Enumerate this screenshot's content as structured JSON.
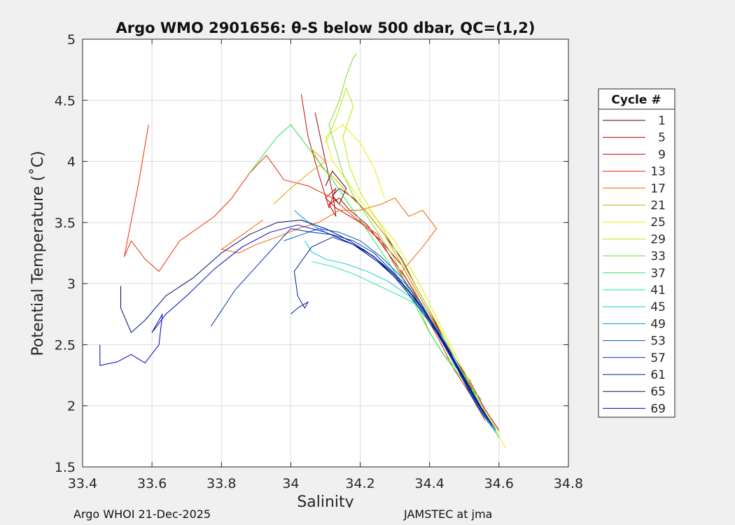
{
  "chart_data": {
    "type": "line",
    "title": "Argo WMO 2901656: θ-S below 500 dbar,  QC=(1,2)",
    "xlabel": "Salinity",
    "ylabel": "Potential Temperature (˚C)",
    "xlim": [
      33.4,
      34.8
    ],
    "ylim": [
      1.5,
      5
    ],
    "xticks": [
      "33.4",
      "33.6",
      "33.8",
      "34",
      "34.2",
      "34.4",
      "34.6",
      "34.8"
    ],
    "yticks": [
      "1.5",
      "2",
      "2.5",
      "3",
      "3.5",
      "4",
      "4.5",
      "5"
    ],
    "grid": true,
    "legend": {
      "title": "Cycle #",
      "position": "right",
      "entries": [
        "1",
        "5",
        "9",
        "13",
        "17",
        "21",
        "25",
        "29",
        "33",
        "37",
        "41",
        "45",
        "49",
        "53",
        "57",
        "61",
        "65",
        "69"
      ],
      "colors": [
        "#4d0000",
        "#9e0000",
        "#d40000",
        "#ee2a00",
        "#f06000",
        "#e0a000",
        "#f0e800",
        "#b8e800",
        "#70e030",
        "#30e050",
        "#20e0b0",
        "#10c8e0",
        "#0090d0",
        "#0058c0",
        "#0030a8",
        "#001c8c",
        "#000e70",
        "#0000c0"
      ]
    },
    "series": [
      {
        "name": "1",
        "salinity": [
          34.58,
          34.55,
          34.52,
          34.48,
          34.44,
          34.4,
          34.36,
          34.32,
          34.27,
          34.22,
          34.18,
          34.14,
          34.12,
          34.14,
          34.16,
          34.12,
          34.1
        ],
        "theta": [
          1.84,
          2.0,
          2.15,
          2.35,
          2.55,
          2.78,
          2.98,
          3.2,
          3.4,
          3.58,
          3.7,
          3.78,
          3.72,
          3.65,
          3.78,
          3.92,
          3.8
        ]
      },
      {
        "name": "5",
        "salinity": [
          34.6,
          34.56,
          34.52,
          34.47,
          34.42,
          34.38,
          34.33,
          34.28,
          34.22,
          34.17,
          34.14,
          34.11,
          34.13,
          34.12,
          34.1,
          34.07
        ],
        "theta": [
          1.8,
          1.97,
          2.18,
          2.4,
          2.62,
          2.82,
          3.05,
          3.25,
          3.48,
          3.6,
          3.7,
          3.65,
          3.55,
          3.75,
          4.0,
          4.4
        ]
      },
      {
        "name": "9",
        "salinity": [
          34.57,
          34.53,
          34.48,
          34.44,
          34.38,
          34.32,
          34.26,
          34.2,
          34.13,
          34.1,
          34.13,
          34.11,
          34.08,
          34.05,
          34.03
        ],
        "theta": [
          1.9,
          2.1,
          2.32,
          2.55,
          2.85,
          3.15,
          3.35,
          3.5,
          3.62,
          3.7,
          3.78,
          3.62,
          3.9,
          4.2,
          4.55
        ]
      },
      {
        "name": "13",
        "salinity": [
          34.56,
          34.52,
          34.47,
          34.42,
          34.36,
          34.3,
          34.25,
          34.18,
          34.12,
          34.05,
          33.98,
          33.93,
          33.88,
          33.83,
          33.78,
          33.73,
          33.68,
          33.62,
          33.58,
          33.54,
          33.52,
          33.56,
          33.59
        ],
        "theta": [
          1.88,
          2.08,
          2.3,
          2.58,
          2.88,
          3.15,
          3.4,
          3.55,
          3.7,
          3.8,
          3.85,
          4.05,
          3.9,
          3.7,
          3.55,
          3.45,
          3.35,
          3.1,
          3.2,
          3.35,
          3.22,
          3.8,
          4.3
        ]
      },
      {
        "name": "17",
        "salinity": [
          34.58,
          34.54,
          34.5,
          34.45,
          34.4,
          34.36,
          34.32,
          34.38,
          34.42,
          34.38,
          34.34,
          34.3,
          34.26,
          34.2,
          34.14,
          34.08,
          34.02,
          33.96,
          33.9,
          33.85,
          33.8,
          33.86,
          33.92
        ],
        "theta": [
          1.85,
          2.02,
          2.2,
          2.45,
          2.7,
          2.92,
          3.1,
          3.3,
          3.45,
          3.6,
          3.55,
          3.7,
          3.65,
          3.6,
          3.6,
          3.5,
          3.45,
          3.38,
          3.32,
          3.25,
          3.28,
          3.4,
          3.52
        ]
      },
      {
        "name": "21",
        "salinity": [
          34.59,
          34.55,
          34.51,
          34.47,
          34.43,
          34.39,
          34.35,
          34.31,
          34.27,
          34.22,
          34.17,
          34.13,
          34.09,
          34.06,
          34.1,
          34.05,
          34.0,
          33.95
        ],
        "theta": [
          1.82,
          1.98,
          2.15,
          2.35,
          2.58,
          2.8,
          3.0,
          3.2,
          3.4,
          3.58,
          3.72,
          3.85,
          3.95,
          4.1,
          4.0,
          3.9,
          3.78,
          3.65
        ]
      },
      {
        "name": "25",
        "salinity": [
          34.62,
          34.58,
          34.54,
          34.5,
          34.46,
          34.42,
          34.38,
          34.34,
          34.3,
          34.25,
          34.2,
          34.16,
          34.12,
          34.1,
          34.15,
          34.2,
          34.24,
          34.27
        ],
        "theta": [
          1.65,
          1.85,
          2.05,
          2.28,
          2.5,
          2.72,
          2.95,
          3.15,
          3.35,
          3.52,
          3.68,
          3.85,
          4.0,
          4.2,
          4.3,
          4.15,
          3.95,
          3.7
        ]
      },
      {
        "name": "29",
        "salinity": [
          34.6,
          34.56,
          34.52,
          34.48,
          34.44,
          34.4,
          34.36,
          34.32,
          34.28,
          34.24,
          34.2,
          34.17,
          34.15,
          34.18,
          34.16,
          34.13,
          34.1
        ],
        "theta": [
          1.78,
          1.95,
          2.14,
          2.35,
          2.58,
          2.78,
          2.98,
          3.18,
          3.38,
          3.56,
          3.75,
          3.95,
          4.2,
          4.45,
          4.6,
          4.35,
          4.15
        ]
      },
      {
        "name": "33",
        "salinity": [
          34.52,
          34.48,
          34.44,
          34.4,
          34.37,
          34.33,
          34.3,
          34.26,
          34.22,
          34.18,
          34.15,
          34.13,
          34.11,
          34.14,
          34.16,
          34.18,
          34.19
        ],
        "theta": [
          2.2,
          2.3,
          2.42,
          2.6,
          2.8,
          3.0,
          3.2,
          3.38,
          3.55,
          3.72,
          3.9,
          4.1,
          4.3,
          4.5,
          4.7,
          4.85,
          4.88
        ]
      },
      {
        "name": "37",
        "salinity": [
          34.55,
          34.5,
          34.45,
          34.4,
          34.36,
          34.32,
          34.28,
          34.24,
          34.2,
          34.16,
          34.12,
          34.08,
          34.04,
          34.0,
          33.96,
          33.92,
          33.88
        ],
        "theta": [
          2.05,
          2.2,
          2.38,
          2.6,
          2.82,
          3.0,
          3.18,
          3.35,
          3.52,
          3.68,
          3.85,
          4.0,
          4.15,
          4.3,
          4.2,
          4.05,
          3.9
        ]
      },
      {
        "name": "41",
        "salinity": [
          34.6,
          34.56,
          34.52,
          34.48,
          34.44,
          34.4,
          34.35,
          34.3,
          34.24,
          34.18,
          34.12,
          34.06
        ],
        "theta": [
          1.74,
          1.92,
          2.12,
          2.35,
          2.55,
          2.72,
          2.85,
          2.92,
          3.0,
          3.08,
          3.14,
          3.18
        ]
      },
      {
        "name": "45",
        "salinity": [
          34.59,
          34.55,
          34.51,
          34.47,
          34.43,
          34.39,
          34.34,
          34.28,
          34.22,
          34.16,
          34.1,
          34.06,
          34.04
        ],
        "theta": [
          1.78,
          1.96,
          2.15,
          2.36,
          2.56,
          2.74,
          2.9,
          3.02,
          3.1,
          3.16,
          3.2,
          3.26,
          3.35
        ]
      },
      {
        "name": "49",
        "salinity": [
          34.58,
          34.54,
          34.5,
          34.46,
          34.42,
          34.38,
          34.33,
          34.27,
          34.21,
          34.15,
          34.1,
          34.06,
          34.03,
          34.01
        ],
        "theta": [
          1.82,
          2.0,
          2.2,
          2.42,
          2.62,
          2.82,
          3.0,
          3.15,
          3.28,
          3.36,
          3.42,
          3.48,
          3.55,
          3.6
        ]
      },
      {
        "name": "53",
        "salinity": [
          34.57,
          34.53,
          34.49,
          34.45,
          34.41,
          34.37,
          34.32,
          34.26,
          34.2,
          34.14,
          34.08,
          34.03,
          33.98
        ],
        "theta": [
          1.86,
          2.04,
          2.25,
          2.46,
          2.66,
          2.86,
          3.05,
          3.22,
          3.35,
          3.42,
          3.45,
          3.4,
          3.35
        ]
      },
      {
        "name": "57",
        "salinity": [
          34.56,
          34.52,
          34.48,
          34.44,
          34.4,
          34.35,
          34.3,
          34.24,
          34.18,
          34.12,
          34.06,
          34.0,
          33.92,
          33.84,
          33.77
        ],
        "theta": [
          1.9,
          2.08,
          2.3,
          2.5,
          2.7,
          2.9,
          3.08,
          3.25,
          3.35,
          3.4,
          3.42,
          3.45,
          3.2,
          2.95,
          2.65
        ]
      },
      {
        "name": "61",
        "salinity": [
          34.57,
          34.53,
          34.49,
          34.45,
          34.4,
          34.35,
          34.3,
          34.24,
          34.18,
          34.12,
          34.06,
          34.01,
          34.02,
          34.04,
          34.05,
          34.02,
          34.0
        ],
        "theta": [
          1.88,
          2.06,
          2.26,
          2.48,
          2.68,
          2.88,
          3.05,
          3.22,
          3.32,
          3.38,
          3.3,
          3.1,
          2.9,
          2.8,
          2.85,
          2.8,
          2.75
        ]
      },
      {
        "name": "65",
        "salinity": [
          34.58,
          34.54,
          34.5,
          34.46,
          34.42,
          34.37,
          34.31,
          34.24,
          34.17,
          34.1,
          34.03,
          33.96,
          33.88,
          33.8,
          33.72,
          33.64,
          33.58,
          33.54,
          33.51,
          33.51
        ],
        "theta": [
          1.84,
          2.02,
          2.22,
          2.42,
          2.62,
          2.84,
          3.04,
          3.22,
          3.35,
          3.45,
          3.52,
          3.5,
          3.4,
          3.25,
          3.05,
          2.9,
          2.7,
          2.6,
          2.8,
          2.98
        ]
      },
      {
        "name": "69",
        "salinity": [
          34.59,
          34.55,
          34.51,
          34.47,
          34.43,
          34.38,
          34.32,
          34.25,
          34.18,
          34.1,
          34.02,
          33.94,
          33.86,
          33.78,
          33.7,
          33.64,
          33.6,
          33.63,
          33.62,
          33.58,
          33.54,
          33.5,
          33.45,
          33.45
        ],
        "theta": [
          1.8,
          1.98,
          2.18,
          2.38,
          2.58,
          2.8,
          3.0,
          3.18,
          3.32,
          3.42,
          3.48,
          3.42,
          3.3,
          3.12,
          2.9,
          2.75,
          2.6,
          2.75,
          2.5,
          2.35,
          2.42,
          2.36,
          2.33,
          2.5
        ]
      }
    ]
  },
  "footer": {
    "left": "Argo WHOI 21-Dec-2025",
    "right": "JAMSTEC at jma"
  }
}
